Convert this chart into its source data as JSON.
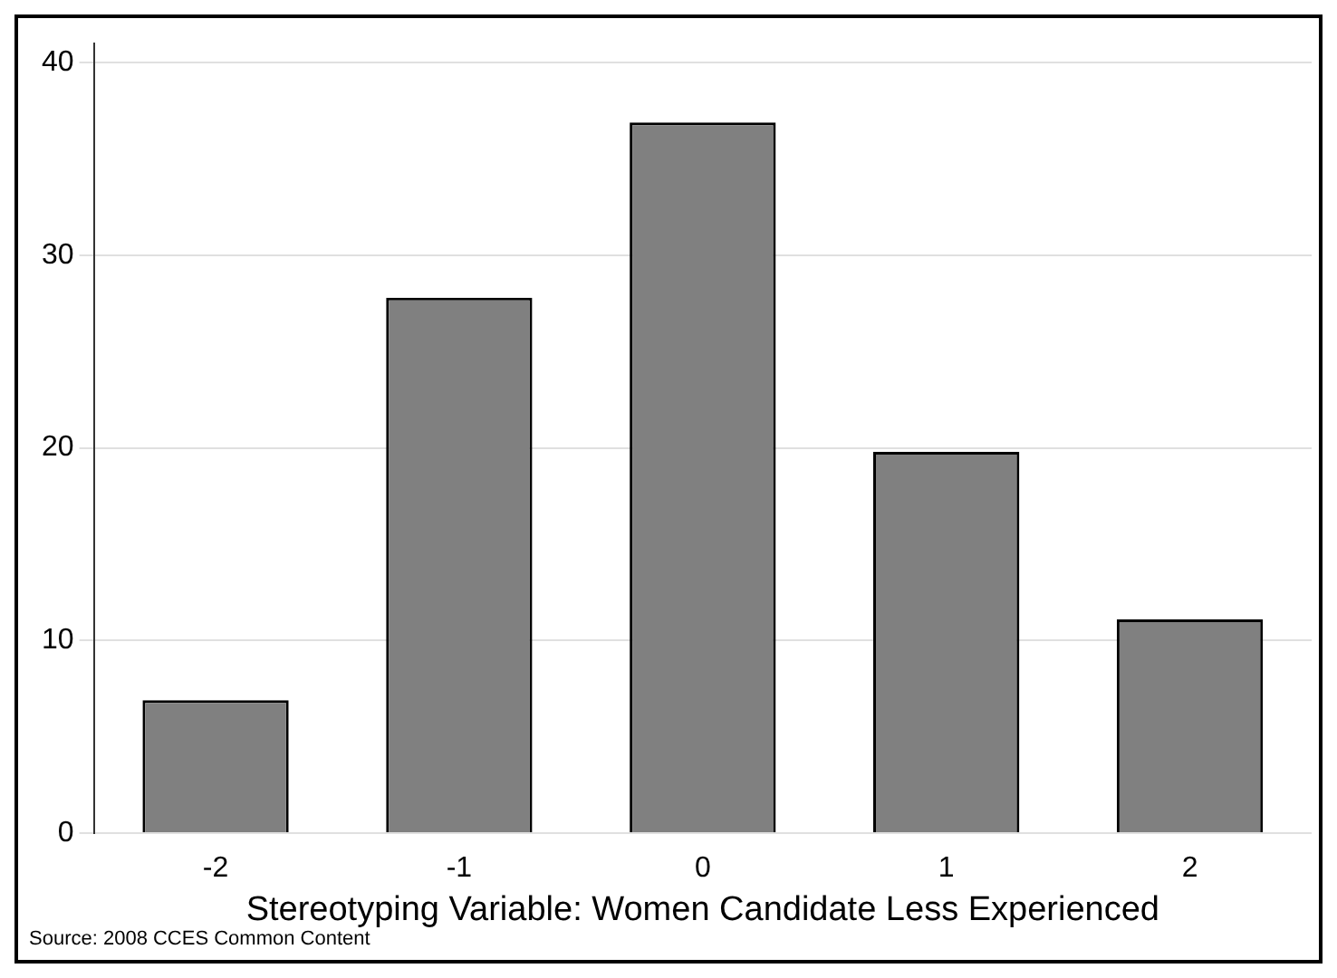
{
  "chart_data": {
    "type": "bar",
    "xlabel": "Stereotyping Variable: Women Candidate Less Experienced",
    "categories": [
      "-2",
      "-1",
      "0",
      "1",
      "2"
    ],
    "values": [
      6.9,
      27.8,
      36.9,
      19.8,
      11.1
    ],
    "color": "#808080",
    "ylim": [
      0,
      41
    ],
    "yticks": [
      0,
      10,
      20,
      30,
      40
    ],
    "grid": "y",
    "legend": false,
    "annotations": [
      "Source: 2008 CCES Common Content"
    ]
  }
}
